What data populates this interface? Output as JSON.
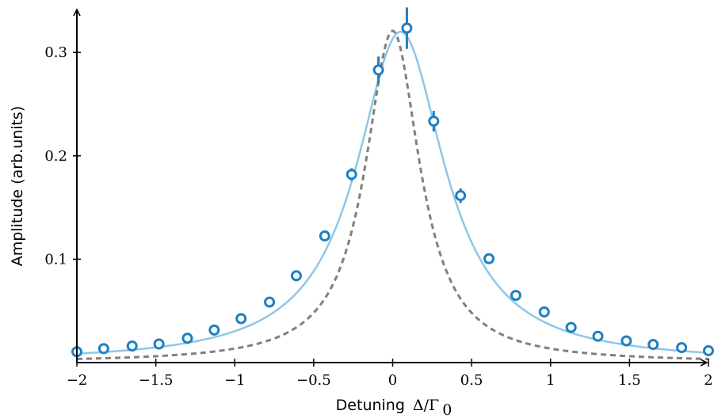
{
  "chart_data": {
    "type": "scatter",
    "title": "",
    "xlabel": "Detuning",
    "xlabel_math": "Δ/Γ",
    "xlabel_sub": "0",
    "ylabel": "Amplitude (arb.units)",
    "xlim": [
      -2,
      2
    ],
    "ylim": [
      0.0,
      0.34
    ],
    "grid": false,
    "legend": "none",
    "x_ticks": [
      -2,
      -1.5,
      -1,
      -0.5,
      0,
      0.5,
      1,
      1.5,
      2
    ],
    "x_tick_labels": [
      "−2",
      "−1.5",
      "−1",
      "−0.5",
      "0",
      "0.5",
      "1",
      "1.5",
      "2"
    ],
    "y_ticks": [
      0.1,
      0.2,
      0.3
    ],
    "y_tick_labels": [
      "0.1",
      "0.2",
      "0.3"
    ],
    "series": [
      {
        "kind": "errorbar-points",
        "color": "#1f7fc1",
        "points": [
          {
            "x": -2.0,
            "y": 0.0105,
            "err": 0.002
          },
          {
            "x": -1.83,
            "y": 0.0135,
            "err": 0.002
          },
          {
            "x": -1.65,
            "y": 0.016,
            "err": 0.002
          },
          {
            "x": -1.48,
            "y": 0.018,
            "err": 0.002
          },
          {
            "x": -1.3,
            "y": 0.0235,
            "err": 0.003
          },
          {
            "x": -1.13,
            "y": 0.0315,
            "err": 0.003
          },
          {
            "x": -0.96,
            "y": 0.0425,
            "err": 0.003
          },
          {
            "x": -0.78,
            "y": 0.0585,
            "err": 0.003
          },
          {
            "x": -0.61,
            "y": 0.084,
            "err": 0.003
          },
          {
            "x": -0.43,
            "y": 0.1225,
            "err": 0.004
          },
          {
            "x": -0.26,
            "y": 0.182,
            "err": 0.006
          },
          {
            "x": -0.09,
            "y": 0.283,
            "err": 0.013
          },
          {
            "x": 0.09,
            "y": 0.3235,
            "err": 0.02
          },
          {
            "x": 0.26,
            "y": 0.2335,
            "err": 0.01
          },
          {
            "x": 0.43,
            "y": 0.1615,
            "err": 0.007
          },
          {
            "x": 0.61,
            "y": 0.1005,
            "err": 0.003
          },
          {
            "x": 0.78,
            "y": 0.065,
            "err": 0.003
          },
          {
            "x": 0.96,
            "y": 0.049,
            "err": 0.003
          },
          {
            "x": 1.13,
            "y": 0.034,
            "err": 0.003
          },
          {
            "x": 1.3,
            "y": 0.0255,
            "err": 0.002
          },
          {
            "x": 1.48,
            "y": 0.021,
            "err": 0.002
          },
          {
            "x": 1.65,
            "y": 0.0175,
            "err": 0.002
          },
          {
            "x": 1.83,
            "y": 0.0145,
            "err": 0.002
          },
          {
            "x": 2.0,
            "y": 0.0115,
            "err": 0.002
          }
        ]
      },
      {
        "kind": "fit-curve",
        "color": "#90c6e8",
        "style": "solid",
        "model": "lorentzian",
        "peak": 0.32,
        "center": 0.05,
        "half_width": 0.34
      },
      {
        "kind": "reference-curve",
        "color": "#808080",
        "style": "dashed",
        "model": "lorentzian",
        "peak": 0.321,
        "center": 0.0,
        "half_width": 0.21
      }
    ]
  }
}
